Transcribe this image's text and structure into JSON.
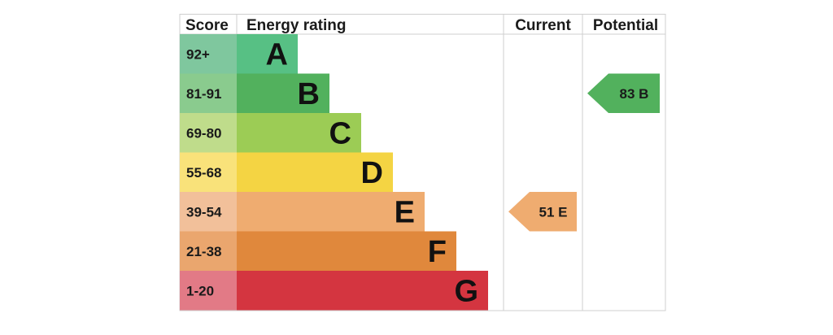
{
  "headers": {
    "score": "Score",
    "rating": "Energy rating",
    "current": "Current",
    "potential": "Potential"
  },
  "chart_data": {
    "type": "bar",
    "bands": [
      {
        "letter": "A",
        "range": "92+",
        "color": "#57c084",
        "score_color": "#7fc79e"
      },
      {
        "letter": "B",
        "range": "81-91",
        "color": "#52b15d",
        "score_color": "#8acb8e"
      },
      {
        "letter": "C",
        "range": "69-80",
        "color": "#9ccc55",
        "score_color": "#bfdc8b"
      },
      {
        "letter": "D",
        "range": "55-68",
        "color": "#f4d443",
        "score_color": "#f9e27a"
      },
      {
        "letter": "E",
        "range": "39-54",
        "color": "#efac70",
        "score_color": "#f2c09a"
      },
      {
        "letter": "F",
        "range": "21-38",
        "color": "#e0883c",
        "score_color": "#eaa66e"
      },
      {
        "letter": "G",
        "range": "1-20",
        "color": "#d43540",
        "score_color": "#e27a86"
      }
    ],
    "current": {
      "value": 51,
      "band": "E",
      "label": "51  E",
      "color": "#efac70"
    },
    "potential": {
      "value": 83,
      "band": "B",
      "label": "83  B",
      "color": "#52b15d"
    }
  }
}
